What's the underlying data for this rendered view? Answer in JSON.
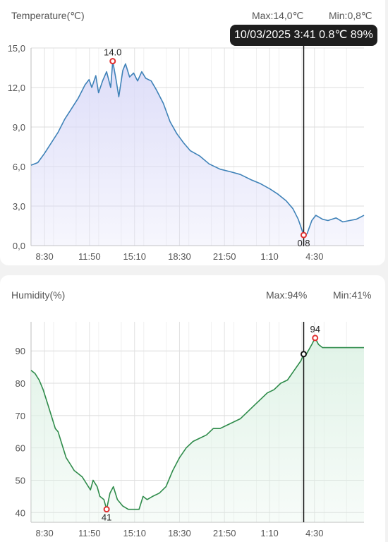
{
  "temperature_card": {
    "title": "Temperature(℃)",
    "max_label": "Max:14,0℃",
    "min_label": "Min:0,8℃",
    "tooltip": "10/03/2025 3:41 0.8℃ 89%",
    "colors": {
      "line": "#3f82b8",
      "fill": "#dcdcf8",
      "marker": "#e03030"
    }
  },
  "humidity_card": {
    "title": "Humidity(%)",
    "max_label": "Max:94%",
    "min_label": "Min:41%",
    "colors": {
      "line": "#2e8b4a",
      "fill": "#dff2e6",
      "marker": "#e03030"
    }
  },
  "chart_data": [
    {
      "type": "area",
      "title": "Temperature(℃)",
      "x_ticks": [
        "8:30",
        "11:50",
        "15:10",
        "18:30",
        "21:50",
        "1:10",
        "4:30"
      ],
      "y_ticks": [
        "0,0",
        "3,0",
        "6,0",
        "9,0",
        "12,0",
        "15,0"
      ],
      "ylim": [
        0,
        15
      ],
      "x_unit": "hours since start",
      "x_tick_positions": [
        1.0,
        4.33,
        7.67,
        11.0,
        14.33,
        17.67,
        21.0
      ],
      "xlim": [
        0,
        24.67
      ],
      "grid": true,
      "points": [
        [
          0.0,
          6.1
        ],
        [
          0.5,
          6.3
        ],
        [
          1.0,
          7.0
        ],
        [
          1.5,
          7.8
        ],
        [
          2.0,
          8.6
        ],
        [
          2.5,
          9.6
        ],
        [
          3.0,
          10.4
        ],
        [
          3.5,
          11.2
        ],
        [
          4.0,
          12.2
        ],
        [
          4.3,
          12.6
        ],
        [
          4.5,
          12.0
        ],
        [
          4.8,
          12.9
        ],
        [
          5.0,
          11.6
        ],
        [
          5.3,
          12.5
        ],
        [
          5.6,
          13.2
        ],
        [
          5.9,
          12.0
        ],
        [
          6.05,
          14.0
        ],
        [
          6.3,
          12.6
        ],
        [
          6.5,
          11.3
        ],
        [
          6.8,
          13.3
        ],
        [
          7.0,
          13.8
        ],
        [
          7.3,
          12.8
        ],
        [
          7.6,
          13.1
        ],
        [
          7.9,
          12.5
        ],
        [
          8.2,
          13.2
        ],
        [
          8.5,
          12.7
        ],
        [
          8.9,
          12.5
        ],
        [
          9.3,
          11.8
        ],
        [
          9.8,
          10.8
        ],
        [
          10.3,
          9.4
        ],
        [
          10.8,
          8.5
        ],
        [
          11.3,
          7.8
        ],
        [
          11.8,
          7.2
        ],
        [
          12.5,
          6.8
        ],
        [
          13.2,
          6.2
        ],
        [
          14.0,
          5.8
        ],
        [
          14.8,
          5.6
        ],
        [
          15.5,
          5.4
        ],
        [
          16.3,
          5.0
        ],
        [
          17.0,
          4.7
        ],
        [
          17.7,
          4.3
        ],
        [
          18.3,
          3.9
        ],
        [
          18.9,
          3.4
        ],
        [
          19.4,
          2.8
        ],
        [
          19.8,
          2.0
        ],
        [
          20.1,
          1.1
        ],
        [
          20.2,
          0.8
        ],
        [
          20.45,
          0.9
        ],
        [
          20.8,
          1.9
        ],
        [
          21.1,
          2.3
        ],
        [
          21.6,
          2.0
        ],
        [
          22.0,
          1.9
        ],
        [
          22.6,
          2.1
        ],
        [
          23.1,
          1.8
        ],
        [
          23.6,
          1.9
        ],
        [
          24.1,
          2.0
        ],
        [
          24.67,
          2.3
        ]
      ],
      "max_point": {
        "x": 6.05,
        "y": 14.0,
        "label": "14.0"
      },
      "min_point": {
        "x": 20.2,
        "y": 0.8,
        "label": "0.8"
      },
      "cursor_x": 20.2
    },
    {
      "type": "area",
      "title": "Humidity(%)",
      "x_ticks": [
        "8:30",
        "11:50",
        "15:10",
        "18:30",
        "21:50",
        "1:10",
        "4:30"
      ],
      "y_ticks": [
        "40",
        "50",
        "60",
        "70",
        "80",
        "90"
      ],
      "ylim": [
        37,
        99
      ],
      "x_unit": "hours since start",
      "x_tick_positions": [
        1.0,
        4.33,
        7.67,
        11.0,
        14.33,
        17.67,
        21.0
      ],
      "xlim": [
        0,
        24.67
      ],
      "grid": true,
      "points": [
        [
          0.0,
          84
        ],
        [
          0.3,
          83
        ],
        [
          0.6,
          81
        ],
        [
          0.9,
          78
        ],
        [
          1.2,
          74
        ],
        [
          1.5,
          70
        ],
        [
          1.8,
          66
        ],
        [
          2.0,
          65
        ],
        [
          2.3,
          61
        ],
        [
          2.6,
          57
        ],
        [
          2.9,
          55
        ],
        [
          3.2,
          53
        ],
        [
          3.5,
          52
        ],
        [
          3.8,
          51
        ],
        [
          4.1,
          49
        ],
        [
          4.4,
          47
        ],
        [
          4.6,
          50
        ],
        [
          4.9,
          48
        ],
        [
          5.1,
          45
        ],
        [
          5.4,
          44
        ],
        [
          5.6,
          41
        ],
        [
          5.85,
          46
        ],
        [
          6.1,
          48
        ],
        [
          6.4,
          44
        ],
        [
          6.8,
          42
        ],
        [
          7.2,
          41
        ],
        [
          7.6,
          41
        ],
        [
          8.0,
          41
        ],
        [
          8.3,
          45
        ],
        [
          8.6,
          44
        ],
        [
          9.0,
          45
        ],
        [
          9.5,
          46
        ],
        [
          10.0,
          48
        ],
        [
          10.5,
          53
        ],
        [
          11.0,
          57
        ],
        [
          11.5,
          60
        ],
        [
          12.0,
          62
        ],
        [
          12.5,
          63
        ],
        [
          13.0,
          64
        ],
        [
          13.5,
          66
        ],
        [
          14.0,
          66
        ],
        [
          14.5,
          67
        ],
        [
          15.0,
          68
        ],
        [
          15.5,
          69
        ],
        [
          16.0,
          71
        ],
        [
          16.5,
          73
        ],
        [
          17.0,
          75
        ],
        [
          17.5,
          77
        ],
        [
          18.0,
          78
        ],
        [
          18.5,
          80
        ],
        [
          19.0,
          81
        ],
        [
          19.5,
          84
        ],
        [
          20.0,
          87
        ],
        [
          20.2,
          89
        ],
        [
          20.4,
          89
        ],
        [
          20.8,
          92
        ],
        [
          21.05,
          94
        ],
        [
          21.3,
          92
        ],
        [
          21.6,
          91
        ],
        [
          22.0,
          91
        ],
        [
          22.5,
          91
        ],
        [
          23.0,
          91
        ],
        [
          23.5,
          91
        ],
        [
          24.0,
          91
        ],
        [
          24.67,
          91
        ]
      ],
      "max_point": {
        "x": 21.05,
        "y": 94,
        "label": "94"
      },
      "min_point": {
        "x": 5.6,
        "y": 41,
        "label": "41"
      },
      "cursor_point": {
        "x": 20.2,
        "y": 89
      },
      "cursor_x": 20.2
    }
  ]
}
